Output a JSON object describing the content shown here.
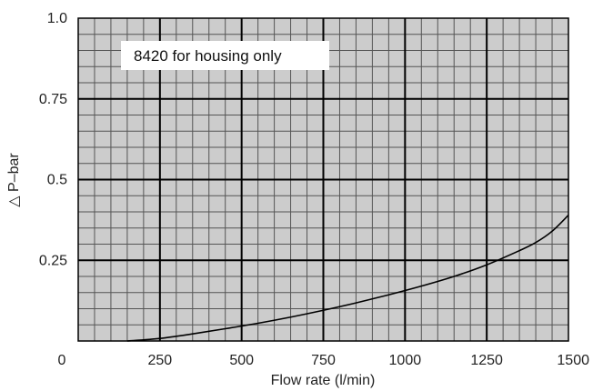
{
  "chart_data": {
    "type": "line",
    "title": "",
    "xlabel": "Flow rate (l/min)",
    "ylabel": "△ P–bar",
    "xlim": [
      0,
      1500
    ],
    "ylim": [
      0,
      1.0
    ],
    "x_ticks": [
      0,
      250,
      500,
      750,
      1000,
      1250,
      1500
    ],
    "x_tick_labels": [
      "0",
      "250",
      "500",
      "750",
      "1000",
      "1250",
      "1500"
    ],
    "y_ticks": [
      0.25,
      0.5,
      0.75,
      1.0
    ],
    "y_tick_labels": [
      "0.25",
      "0.5",
      "0.75",
      "1.0"
    ],
    "grid": true,
    "minor_grid_step_x": 50,
    "minor_grid_step_y": 0.05,
    "annotation": "8420 for housing only",
    "series": [
      {
        "x": [
          150,
          250,
          350,
          450,
          550,
          650,
          750,
          850,
          950,
          1050,
          1150,
          1250,
          1350,
          1400,
          1450,
          1500
        ],
        "y": [
          0.0,
          0.008,
          0.022,
          0.038,
          0.055,
          0.074,
          0.095,
          0.118,
          0.143,
          0.17,
          0.2,
          0.236,
          0.28,
          0.305,
          0.34,
          0.39
        ]
      }
    ],
    "colors": {
      "minor_grid": "#555555",
      "major_grid": "#000000",
      "line": "#000000",
      "background": "#cccccc",
      "label_box": "#ffffff"
    }
  }
}
